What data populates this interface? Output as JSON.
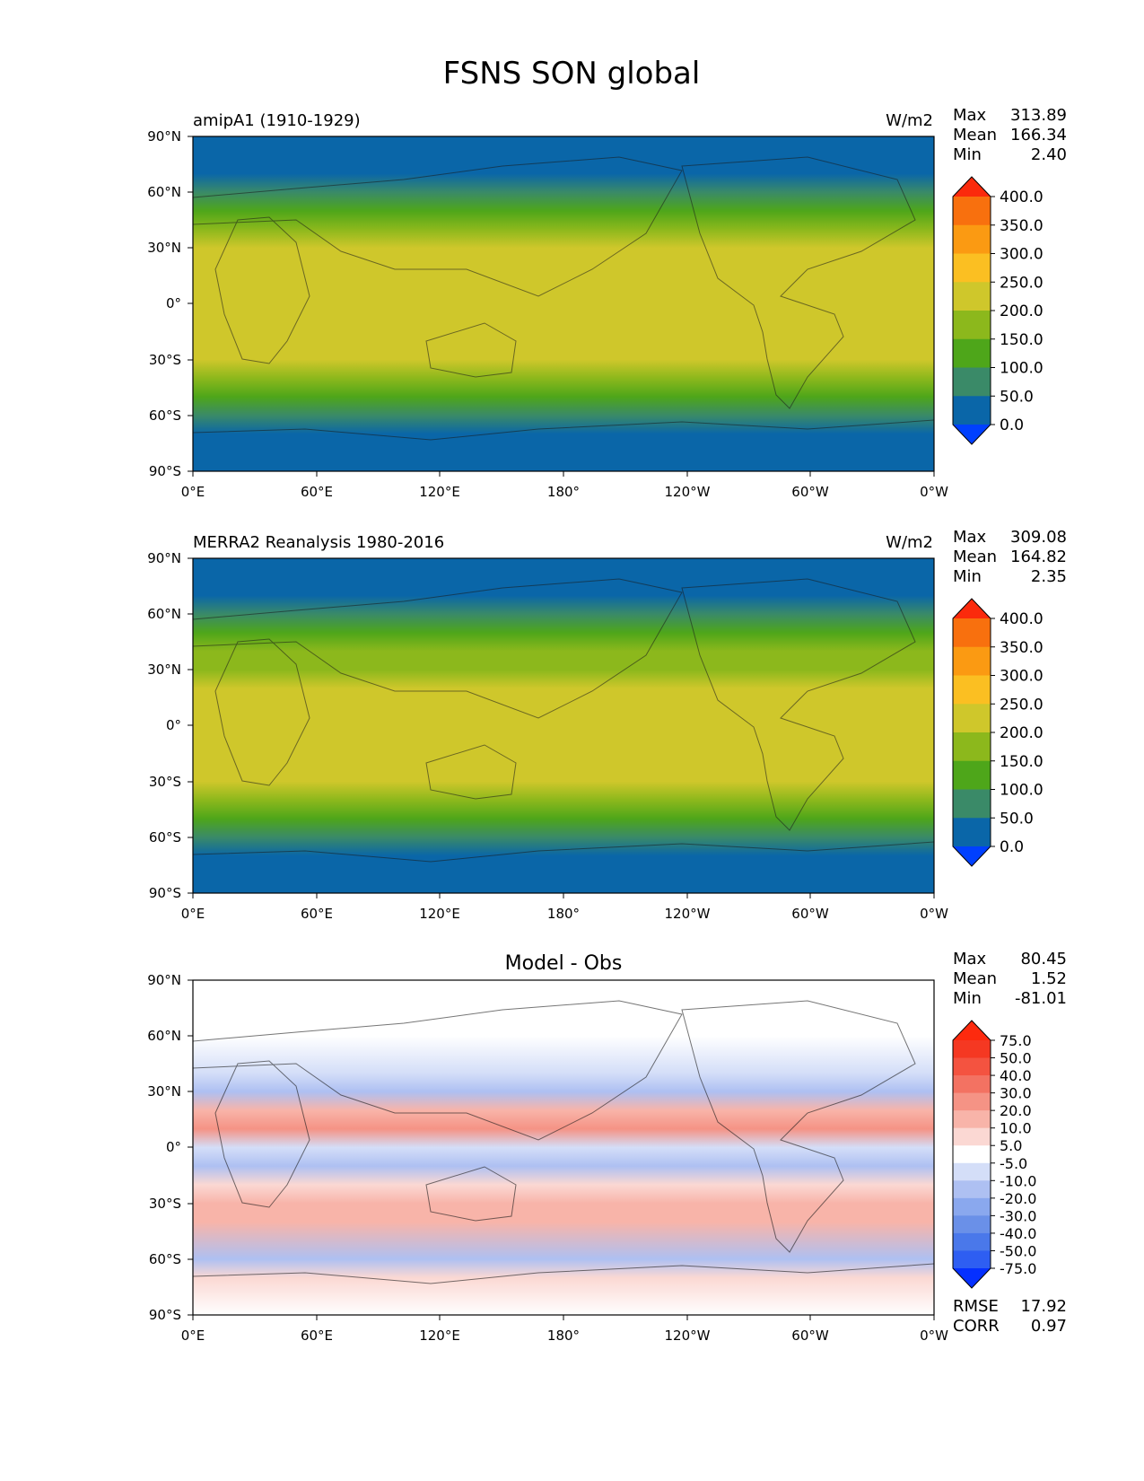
{
  "figure_title": "FSNS SON global",
  "lat_ticks": [
    "90°N",
    "60°N",
    "30°N",
    "0°",
    "30°S",
    "60°S",
    "90°S"
  ],
  "lon_ticks": [
    "0°E",
    "60°E",
    "120°E",
    "180°",
    "120°W",
    "60°W",
    "0°W"
  ],
  "chart_data": [
    {
      "type": "heatmap",
      "title": "amipA1 (1910-1929)",
      "units": "W/m2",
      "stats": {
        "max_label": "Max",
        "max": "313.89",
        "mean_label": "Mean",
        "mean": "166.34",
        "min_label": "Min",
        "min": "2.40"
      },
      "colorbar": {
        "levels": [
          "0.0",
          "50.0",
          "100.0",
          "150.0",
          "200.0",
          "250.0",
          "300.0",
          "350.0",
          "400.0"
        ],
        "colors": [
          "#0040ff",
          "#0a66a8",
          "#3a8a68",
          "#4ea61a",
          "#8cb81c",
          "#cfc72b",
          "#fbbf22",
          "#fb9a12",
          "#f8700e",
          "#fb2a0c"
        ]
      },
      "zonal_profile": {
        "lat": [
          90,
          70,
          60,
          50,
          40,
          30,
          20,
          10,
          0,
          -10,
          -20,
          -30,
          -40,
          -50,
          -60,
          -70,
          -90
        ],
        "value": [
          20,
          40,
          70,
          110,
          160,
          205,
          225,
          235,
          235,
          240,
          240,
          230,
          180,
          120,
          70,
          35,
          20
        ]
      }
    },
    {
      "type": "heatmap",
      "title": "MERRA2 Reanalysis 1980-2016",
      "units": "W/m2",
      "stats": {
        "max_label": "Max",
        "max": "309.08",
        "mean_label": "Mean",
        "mean": "164.82",
        "min_label": "Min",
        "min": "2.35"
      },
      "colorbar": {
        "levels": [
          "0.0",
          "50.0",
          "100.0",
          "150.0",
          "200.0",
          "250.0",
          "300.0",
          "350.0",
          "400.0"
        ],
        "colors": [
          "#0040ff",
          "#0a66a8",
          "#3a8a68",
          "#4ea61a",
          "#8cb81c",
          "#cfc72b",
          "#fbbf22",
          "#fb9a12",
          "#f8700e",
          "#fb2a0c"
        ]
      },
      "zonal_profile": {
        "lat": [
          90,
          70,
          60,
          50,
          40,
          30,
          20,
          10,
          0,
          -10,
          -20,
          -30,
          -40,
          -50,
          -60,
          -70,
          -90
        ],
        "value": [
          20,
          35,
          65,
          110,
          155,
          190,
          200,
          205,
          225,
          245,
          245,
          215,
          165,
          110,
          75,
          45,
          20
        ]
      }
    },
    {
      "type": "heatmap",
      "title": "Model - Obs",
      "stats": {
        "max_label": "Max",
        "max": "80.45",
        "mean_label": "Mean",
        "mean": "1.52",
        "min_label": "Min",
        "min": "-81.01"
      },
      "rmse_label": "RMSE",
      "rmse": "17.92",
      "corr_label": "CORR",
      "corr": "0.97",
      "colorbar": {
        "levels": [
          "-75.0",
          "-50.0",
          "-40.0",
          "-30.0",
          "-20.0",
          "-10.0",
          "-5.0",
          "5.0",
          "10.0",
          "20.0",
          "30.0",
          "40.0",
          "50.0",
          "75.0"
        ],
        "colors": [
          "#0530ff",
          "#2e5ef2",
          "#4a78ea",
          "#6a90e8",
          "#8aa8ee",
          "#aec0f2",
          "#d4def8",
          "#ffffff",
          "#fbd8d3",
          "#f8b4a9",
          "#f59385",
          "#f37262",
          "#f45340",
          "#f53822",
          "#fd2a0e"
        ]
      },
      "zonal_profile": {
        "lat": [
          90,
          60,
          40,
          30,
          20,
          10,
          0,
          -10,
          -20,
          -30,
          -40,
          -60,
          -70,
          -90
        ],
        "value": [
          0,
          -5,
          -10,
          -15,
          10,
          25,
          -8,
          -15,
          5,
          15,
          10,
          -15,
          5,
          0
        ]
      }
    }
  ]
}
